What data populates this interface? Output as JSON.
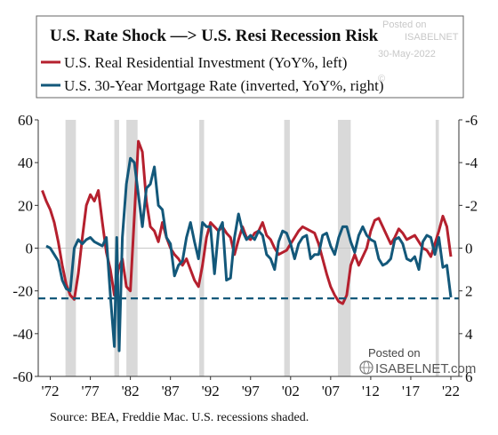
{
  "chart_data": {
    "type": "line",
    "title": "U.S. Rate Shock —> U.S. Resi Recession Risk",
    "x_tick_labels": [
      "'72",
      "'77",
      "'82",
      "'87",
      "'92",
      "'97",
      "'02",
      "'07",
      "'12",
      "'17",
      "'22"
    ],
    "x_tick_years": [
      1972,
      1977,
      1982,
      1987,
      1992,
      1997,
      2002,
      2007,
      2012,
      2017,
      2022
    ],
    "xlim": [
      1970.5,
      2023.0
    ],
    "ylim_left": [
      -60,
      60
    ],
    "ylim_right": [
      6,
      -6
    ],
    "left_ticks": [
      60,
      40,
      20,
      0,
      -20,
      -40,
      -60
    ],
    "right_ticks": [
      -6,
      -4,
      -2,
      0,
      2,
      4,
      6
    ],
    "right_tick_labels": [
      "-6",
      "-4",
      "-2",
      "0",
      "2",
      "4",
      "6"
    ],
    "recessions": [
      [
        1973.9,
        1975.2
      ],
      [
        1980.0,
        1980.6
      ],
      [
        1981.5,
        1982.9
      ],
      [
        1990.6,
        1991.2
      ],
      [
        2001.2,
        2001.9
      ],
      [
        2007.9,
        2009.5
      ],
      [
        2020.1,
        2020.5
      ]
    ],
    "reference_line": {
      "axis": "left",
      "value": -23.5
    },
    "series": [
      {
        "name": "U.S. Real Residential Investment (YoY%, left)",
        "axis": "left",
        "color": "#b5202e",
        "x": [
          1971.0,
          1971.5,
          1972.0,
          1972.5,
          1973.0,
          1973.5,
          1974.0,
          1974.5,
          1975.0,
          1975.5,
          1976.0,
          1976.5,
          1977.0,
          1977.5,
          1978.0,
          1978.5,
          1979.0,
          1979.5,
          1980.0,
          1980.5,
          1981.0,
          1981.5,
          1982.0,
          1982.5,
          1983.0,
          1983.5,
          1984.0,
          1984.5,
          1985.0,
          1985.5,
          1986.0,
          1986.5,
          1987.0,
          1987.5,
          1988.0,
          1988.5,
          1989.0,
          1989.5,
          1990.0,
          1990.5,
          1991.0,
          1991.5,
          1992.0,
          1992.5,
          1993.0,
          1993.5,
          1994.0,
          1994.5,
          1995.0,
          1995.5,
          1996.0,
          1996.5,
          1997.0,
          1997.5,
          1998.0,
          1998.5,
          1999.0,
          1999.5,
          2000.0,
          2000.5,
          2001.0,
          2001.5,
          2002.0,
          2002.5,
          2003.0,
          2003.5,
          2004.0,
          2004.5,
          2005.0,
          2005.5,
          2006.0,
          2006.5,
          2007.0,
          2007.5,
          2008.0,
          2008.5,
          2009.0,
          2009.5,
          2010.0,
          2010.5,
          2011.0,
          2011.5,
          2012.0,
          2012.5,
          2013.0,
          2013.5,
          2014.0,
          2014.5,
          2015.0,
          2015.5,
          2016.0,
          2016.5,
          2017.0,
          2017.5,
          2018.0,
          2018.5,
          2019.0,
          2019.5,
          2020.0,
          2020.5,
          2021.0,
          2021.5,
          2022.0
        ],
        "values": [
          27,
          22,
          18,
          12,
          3,
          -8,
          -17,
          -22,
          -24,
          -12,
          5,
          20,
          25,
          22,
          27,
          12,
          -2,
          -10,
          -22,
          -10,
          -5,
          -18,
          -20,
          15,
          50,
          45,
          22,
          10,
          8,
          3,
          12,
          5,
          0,
          -3,
          -5,
          -8,
          -5,
          -10,
          -15,
          -18,
          -8,
          5,
          12,
          10,
          8,
          10,
          7,
          5,
          -3,
          4,
          10,
          5,
          4,
          7,
          8,
          12,
          6,
          4,
          0,
          -3,
          -2,
          -1,
          2,
          5,
          8,
          10,
          9,
          8,
          7,
          2,
          -5,
          -12,
          -18,
          -22,
          -25,
          -26,
          -22,
          -8,
          -3,
          -8,
          -4,
          0,
          8,
          13,
          14,
          10,
          6,
          2,
          5,
          9,
          7,
          4,
          5,
          6,
          3,
          0,
          -1,
          -4,
          2,
          8,
          15,
          10,
          -4
        ]
      },
      {
        "name": "U.S. 30-Year Mortgage Rate (inverted, YoY%, right)",
        "axis": "right",
        "color": "#13587a",
        "x": [
          1971.5,
          1972.0,
          1972.5,
          1973.0,
          1973.5,
          1974.0,
          1974.5,
          1975.0,
          1975.5,
          1976.0,
          1976.5,
          1977.0,
          1977.5,
          1978.0,
          1978.5,
          1979.0,
          1979.5,
          1980.0,
          1980.3,
          1980.6,
          1981.0,
          1981.5,
          1982.0,
          1982.5,
          1983.0,
          1983.5,
          1984.0,
          1984.5,
          1985.0,
          1985.5,
          1986.0,
          1986.5,
          1987.0,
          1987.5,
          1988.0,
          1988.5,
          1989.0,
          1989.5,
          1990.0,
          1990.5,
          1991.0,
          1991.5,
          1992.0,
          1992.5,
          1993.0,
          1993.5,
          1994.0,
          1994.5,
          1995.0,
          1995.5,
          1996.0,
          1996.5,
          1997.0,
          1997.5,
          1998.0,
          1998.5,
          1999.0,
          1999.5,
          2000.0,
          2000.5,
          2001.0,
          2001.5,
          2002.0,
          2002.5,
          2003.0,
          2003.5,
          2004.0,
          2004.5,
          2005.0,
          2005.5,
          2006.0,
          2006.5,
          2007.0,
          2007.5,
          2008.0,
          2008.5,
          2009.0,
          2009.5,
          2010.0,
          2010.5,
          2011.0,
          2011.5,
          2012.0,
          2012.5,
          2013.0,
          2013.5,
          2014.0,
          2014.5,
          2015.0,
          2015.5,
          2016.0,
          2016.5,
          2017.0,
          2017.5,
          2018.0,
          2018.5,
          2019.0,
          2019.5,
          2020.0,
          2020.5,
          2021.0,
          2021.5,
          2022.0
        ],
        "values": [
          -0.1,
          0.0,
          0.3,
          0.6,
          1.5,
          1.9,
          2.0,
          0.0,
          -0.4,
          -0.2,
          -0.4,
          -0.5,
          -0.3,
          -0.2,
          -0.1,
          -0.5,
          2.2,
          4.6,
          -0.5,
          4.8,
          -0.5,
          -3.0,
          -4.2,
          -4.0,
          -2.5,
          -1.0,
          -2.8,
          -3.0,
          -3.8,
          -2.0,
          -1.8,
          -0.5,
          -0.2,
          1.3,
          0.8,
          0.6,
          -0.5,
          -1.2,
          -0.3,
          0.5,
          -1.2,
          -1.0,
          -1.0,
          1.2,
          -0.8,
          -1.2,
          1.5,
          1.4,
          -0.5,
          -1.6,
          -0.8,
          -0.4,
          -0.6,
          -0.4,
          -0.8,
          -0.6,
          0.3,
          0.5,
          1.0,
          -0.3,
          -0.8,
          -0.7,
          -0.2,
          0.5,
          -0.2,
          -0.5,
          -0.6,
          0.5,
          0.3,
          0.3,
          -0.6,
          -0.7,
          -0.1,
          0.3,
          -0.5,
          -1.0,
          -1.0,
          -0.3,
          0.2,
          -0.6,
          -1.0,
          -0.6,
          -0.4,
          -0.3,
          0.5,
          0.8,
          0.7,
          0.5,
          -0.4,
          -0.5,
          -0.2,
          0.5,
          0.6,
          0.4,
          1.0,
          -0.3,
          -0.6,
          -0.5,
          0.3,
          -0.5,
          0.9,
          0.8,
          2.3
        ]
      }
    ]
  },
  "source": "Source:  BEA, Freddie Mac. U.S. recessions shaded.",
  "watermark_top": [
    "Posted on",
    "ISABELNET",
    "30-May-2022",
    "©"
  ],
  "posted_on": "Posted on",
  "brand": "ISABELNET.com"
}
